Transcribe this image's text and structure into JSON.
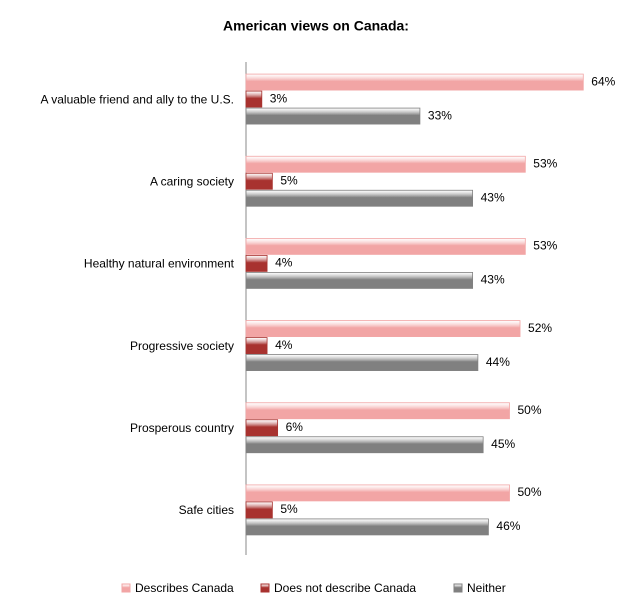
{
  "chart_data": {
    "type": "bar",
    "orientation": "horizontal",
    "title": "American views on Canada:",
    "categories": [
      "A valuable friend and ally to the U.S.",
      "A caring society",
      "Healthy natural environment",
      "Progressive society",
      "Prosperous country",
      "Safe cities"
    ],
    "series": [
      {
        "name": "Describes Canada",
        "color": "#f2a5a5",
        "values": [
          64,
          53,
          53,
          52,
          50,
          50
        ],
        "value_labels": [
          "64%",
          "53%",
          "53%",
          "52%",
          "50%",
          "50%"
        ]
      },
      {
        "name": "Does not describe Canada",
        "color": "#a8322f",
        "values": [
          3,
          5,
          4,
          4,
          6,
          5
        ],
        "value_labels": [
          "3%",
          "5%",
          "4%",
          "4%",
          "6%",
          "5%"
        ]
      },
      {
        "name": "Neither",
        "color": "#808080",
        "values": [
          33,
          43,
          43,
          44,
          45,
          46
        ],
        "value_labels": [
          "33%",
          "43%",
          "43%",
          "44%",
          "45%",
          "46%"
        ]
      }
    ],
    "legend": "bottom"
  }
}
